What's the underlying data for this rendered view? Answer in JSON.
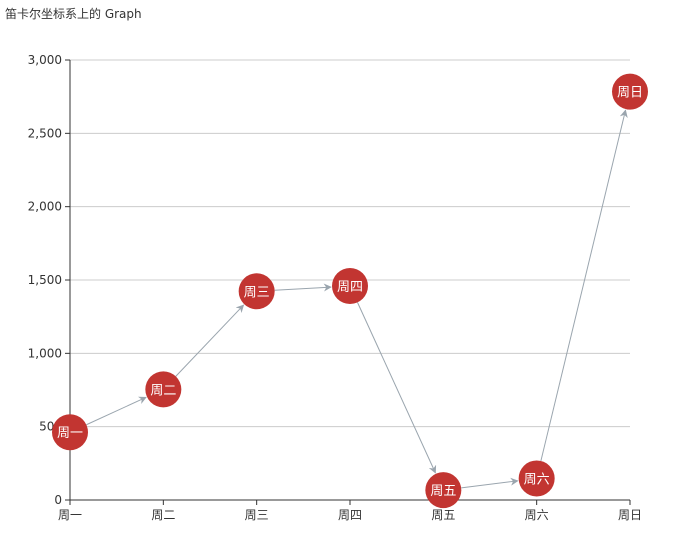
{
  "chart_data": {
    "type": "graph",
    "title": "笛卡尔坐标系上的 Graph",
    "categories": [
      "周一",
      "周二",
      "周三",
      "周四",
      "周五",
      "周六",
      "周日"
    ],
    "yticks": [
      "0",
      "500",
      "1,000",
      "1,500",
      "2,000",
      "2,500",
      "3,000"
    ],
    "ylim": [
      0,
      3000
    ],
    "ystep": 500,
    "grid": true,
    "nodes": [
      {
        "name": "周一",
        "x": "周一",
        "y": 462
      },
      {
        "name": "周二",
        "x": "周二",
        "y": 754
      },
      {
        "name": "周三",
        "x": "周三",
        "y": 1423
      },
      {
        "name": "周四",
        "x": "周四",
        "y": 1459
      },
      {
        "name": "周五",
        "x": "周五",
        "y": 67
      },
      {
        "name": "周六",
        "x": "周六",
        "y": 147
      },
      {
        "name": "周日",
        "x": "周日",
        "y": 2784
      }
    ],
    "links": [
      {
        "source": "周一",
        "target": "周二"
      },
      {
        "source": "周二",
        "target": "周三"
      },
      {
        "source": "周三",
        "target": "周四"
      },
      {
        "source": "周四",
        "target": "周五"
      },
      {
        "source": "周五",
        "target": "周六"
      },
      {
        "source": "周六",
        "target": "周日"
      }
    ],
    "colors": {
      "node": "#c23531",
      "link": "#9aa5ae",
      "grid": "#cccccc",
      "axis": "#333333",
      "label": "#ffffff"
    }
  }
}
